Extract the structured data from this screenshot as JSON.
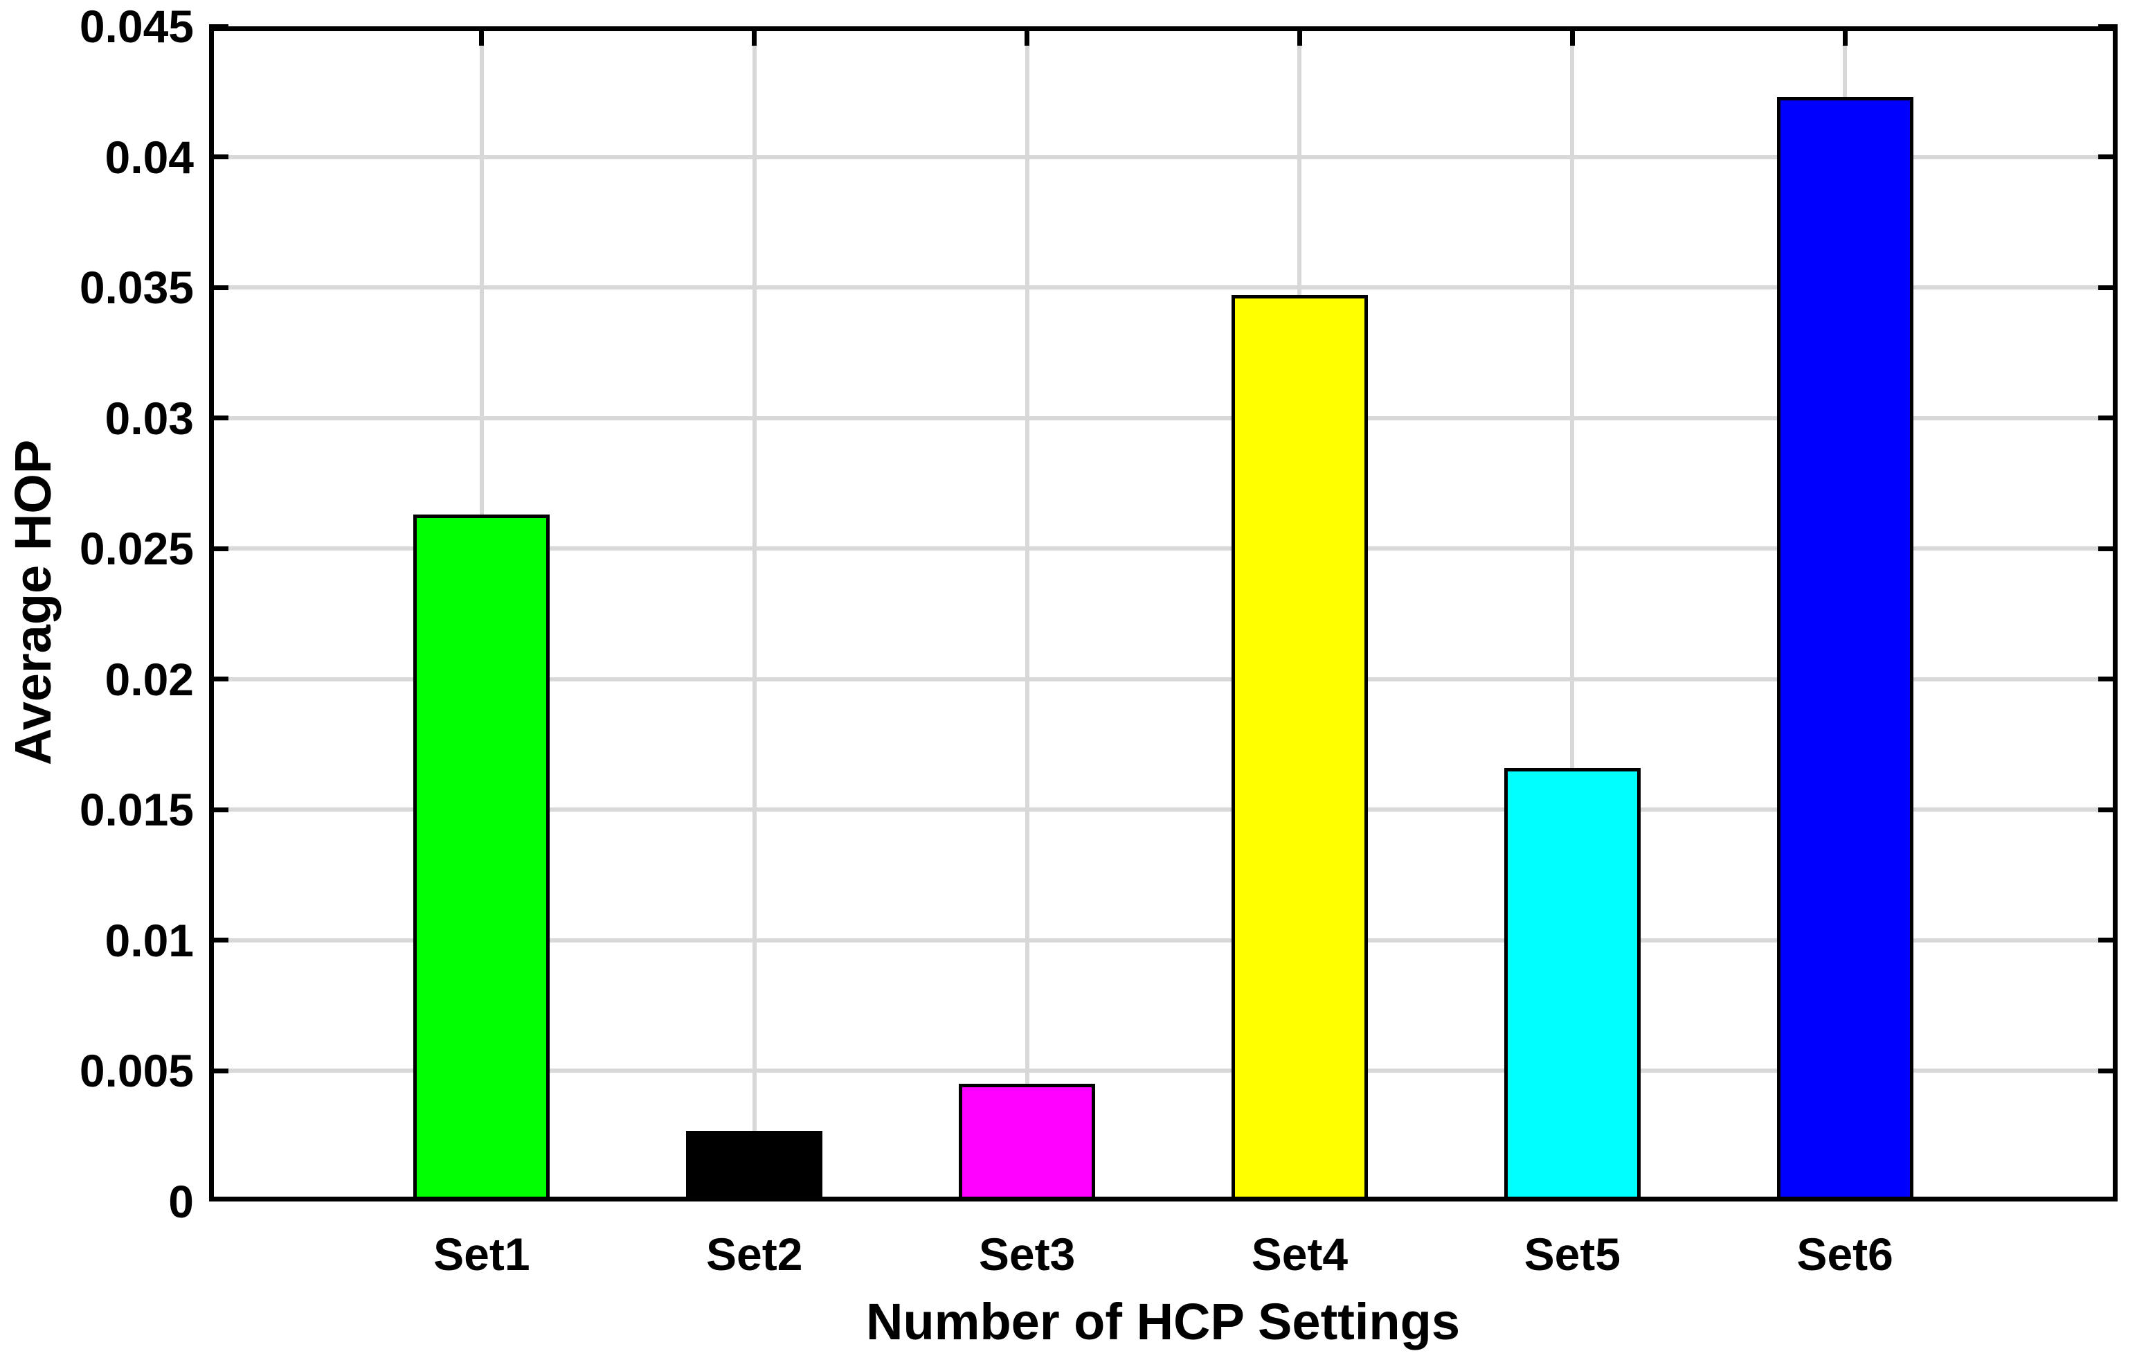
{
  "figure": {
    "background": "#FFFFFF",
    "text_color": "#000000"
  },
  "chart_data": {
    "type": "bar",
    "title": "",
    "xlabel": "Number of HCP Settings",
    "ylabel": "Average HOP",
    "categories": [
      "Set1",
      "Set2",
      "Set3",
      "Set4",
      "Set5",
      "Set6"
    ],
    "values": [
      0.0263,
      0.0027,
      0.0045,
      0.0347,
      0.0166,
      0.0423
    ],
    "bar_colors": [
      "#00FF00",
      "#000000",
      "#FF00FF",
      "#FFFF00",
      "#00FFFF",
      "#0000FF"
    ],
    "bar_edge_color": "#000000",
    "ylim": [
      0,
      0.045
    ],
    "ytick_step": 0.005,
    "ytick_labels": [
      "0",
      "0.005",
      "0.01",
      "0.015",
      "0.02",
      "0.025",
      "0.03",
      "0.035",
      "0.04",
      "0.045"
    ],
    "grid": "on",
    "legend": "none",
    "grid_color": "#D8D8D8",
    "axis_color": "#000000"
  }
}
